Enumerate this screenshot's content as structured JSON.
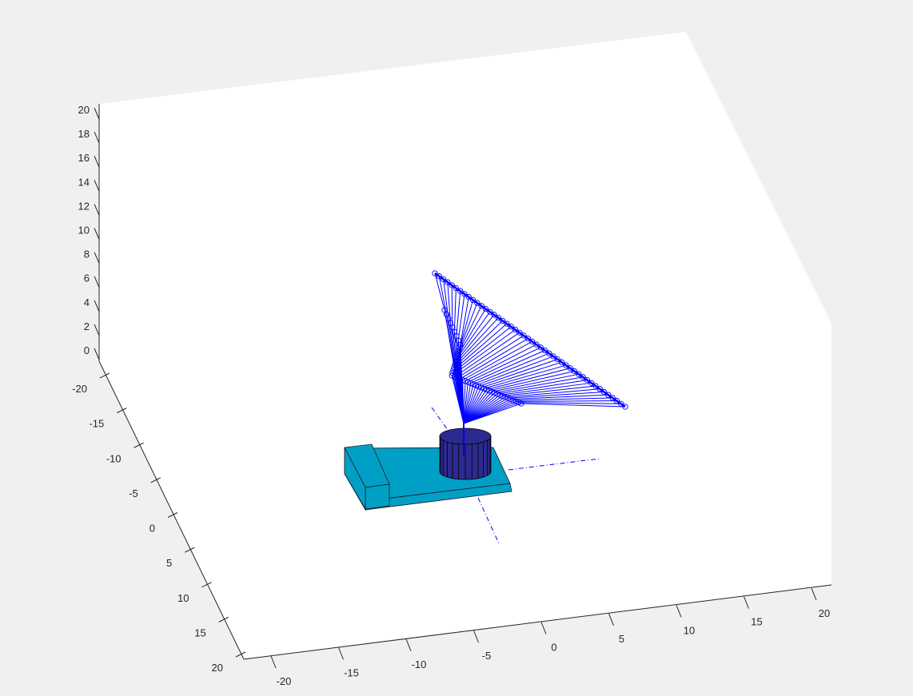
{
  "chart_data": {
    "type": "3d-plot",
    "title": "",
    "xlabel": "",
    "ylabel": "",
    "zlabel": "",
    "grid": false,
    "xlim": [
      -20,
      20
    ],
    "ylim": [
      -20,
      20
    ],
    "zlim": [
      0,
      20
    ],
    "x_ticks": [
      "-20",
      "-15",
      "-10",
      "-5",
      "0",
      "5",
      "10",
      "15",
      "20"
    ],
    "y_ticks": [
      "-20",
      "-15",
      "-10",
      "-5",
      "0",
      "5",
      "10",
      "15",
      "20"
    ],
    "z_ticks": [
      "0",
      "2",
      "4",
      "6",
      "8",
      "10",
      "12",
      "14",
      "16",
      "18",
      "20"
    ],
    "objects": [
      {
        "kind": "base-plate",
        "color": "#00a0c6"
      },
      {
        "kind": "end-block",
        "color": "#00a0c6"
      },
      {
        "kind": "cylinder",
        "color": "#2b2a8f"
      },
      {
        "kind": "dash-dot-axis-x",
        "color": "#0000ff"
      },
      {
        "kind": "dash-dot-axis-y",
        "color": "#0000ff"
      },
      {
        "kind": "arm-trajectory-fan",
        "color": "#0000ff",
        "marker": "circle"
      }
    ]
  }
}
